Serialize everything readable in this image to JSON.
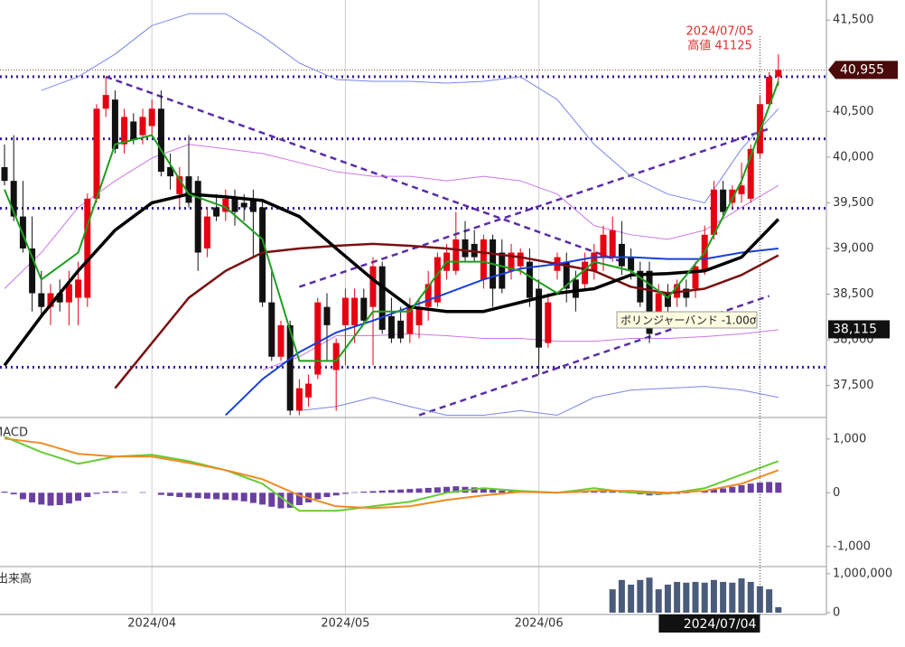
{
  "chart_data": [
    {
      "type": "candlestick",
      "categories": [
        null,
        null,
        null,
        null,
        null,
        null,
        null,
        null,
        null,
        null,
        null,
        null,
        null,
        null,
        null,
        null,
        "2024/04",
        null,
        null,
        null,
        null,
        null,
        null,
        null,
        null,
        null,
        null,
        null,
        null,
        null,
        null,
        null,
        null,
        null,
        null,
        null,
        null,
        "2024/05",
        null,
        null,
        null,
        null,
        null,
        null,
        null,
        null,
        null,
        null,
        null,
        null,
        null,
        null,
        null,
        null,
        null,
        null,
        null,
        null,
        "2024/06",
        null,
        null,
        null,
        null,
        null,
        null,
        null,
        null,
        null,
        null,
        null,
        null,
        null,
        null,
        null,
        null,
        null,
        null,
        null,
        null,
        null,
        null,
        null,
        null,
        null,
        null
      ],
      "ohlc": [
        [
          39890,
          40140,
          39690,
          39740
        ],
        [
          39740,
          40240,
          39300,
          39350
        ],
        [
          39350,
          39740,
          38955,
          39000
        ],
        [
          39000,
          39350,
          38310,
          38510
        ],
        [
          38510,
          38755,
          38260,
          38360
        ],
        [
          38360,
          38610,
          38160,
          38510
        ],
        [
          38510,
          38660,
          38310,
          38410
        ],
        [
          38410,
          38755,
          38160,
          38610
        ],
        [
          38460,
          38855,
          38160,
          38660
        ],
        [
          38460,
          39600,
          38360,
          39545
        ],
        [
          39545,
          40580,
          39500,
          40530
        ],
        [
          40530,
          40880,
          40440,
          40680
        ],
        [
          40630,
          40730,
          40040,
          40090
        ],
        [
          40140,
          40530,
          40040,
          40440
        ],
        [
          40390,
          40480,
          40140,
          40190
        ],
        [
          40240,
          40530,
          40140,
          40440
        ],
        [
          40340,
          40630,
          40240,
          40530
        ],
        [
          40530,
          40730,
          39790,
          39840
        ],
        [
          39890,
          40040,
          39645,
          39790
        ],
        [
          39595,
          39890,
          39450,
          39790
        ],
        [
          39790,
          40240,
          39450,
          39500
        ],
        [
          39740,
          39790,
          38755,
          38955
        ],
        [
          39000,
          39450,
          38905,
          39350
        ],
        [
          39450,
          39595,
          39300,
          39350
        ],
        [
          39400,
          39645,
          39300,
          39545
        ],
        [
          39545,
          39645,
          39250,
          39400
        ],
        [
          39500,
          39595,
          39300,
          39450
        ],
        [
          39545,
          39645,
          38905,
          39400
        ],
        [
          39450,
          39545,
          38360,
          38410
        ],
        [
          38410,
          38755,
          37770,
          37815
        ],
        [
          37815,
          38210,
          37770,
          38160
        ],
        [
          38160,
          38210,
          37175,
          37225
        ],
        [
          37225,
          37570,
          37175,
          37470
        ],
        [
          37370,
          37620,
          37270,
          37520
        ],
        [
          37620,
          38460,
          37570,
          38410
        ],
        [
          38360,
          38510,
          37770,
          38160
        ],
        [
          37670,
          38015,
          37225,
          37965
        ],
        [
          38160,
          38560,
          37720,
          38460
        ],
        [
          38160,
          38560,
          37965,
          38460
        ],
        [
          38460,
          38560,
          38160,
          38210
        ],
        [
          38360,
          38905,
          37720,
          38805
        ],
        [
          38805,
          38855,
          38065,
          38110
        ],
        [
          38260,
          38460,
          37965,
          38015
        ],
        [
          38210,
          38360,
          37965,
          38015
        ],
        [
          38065,
          38460,
          37965,
          38360
        ],
        [
          38160,
          38460,
          38015,
          38360
        ],
        [
          38360,
          38755,
          38210,
          38610
        ],
        [
          38410,
          38955,
          38360,
          38905
        ],
        [
          38755,
          39050,
          38660,
          38955
        ],
        [
          38755,
          39400,
          38710,
          39100
        ],
        [
          39100,
          39300,
          38855,
          38905
        ],
        [
          39050,
          39200,
          38855,
          38905
        ],
        [
          38660,
          39150,
          38560,
          39100
        ],
        [
          39100,
          39150,
          38360,
          38560
        ],
        [
          38955,
          39100,
          38510,
          38560
        ],
        [
          38755,
          39050,
          38660,
          38955
        ],
        [
          38805,
          39000,
          38710,
          38955
        ],
        [
          38855,
          39000,
          38360,
          38460
        ],
        [
          38560,
          38660,
          37620,
          37915
        ],
        [
          37965,
          38510,
          37915,
          38410
        ],
        [
          38755,
          38955,
          38660,
          38905
        ],
        [
          38855,
          38955,
          38410,
          38560
        ],
        [
          38660,
          38755,
          38310,
          38460
        ],
        [
          38610,
          38955,
          38560,
          38855
        ],
        [
          38755,
          39050,
          38660,
          38955
        ],
        [
          38905,
          39250,
          38755,
          39150
        ],
        [
          38905,
          39350,
          38855,
          39200
        ],
        [
          39050,
          39300,
          38710,
          38805
        ],
        [
          38905,
          39000,
          38660,
          38755
        ],
        [
          38755,
          38855,
          38360,
          38410
        ],
        [
          38755,
          38855,
          37965,
          38065
        ],
        [
          38310,
          38610,
          38260,
          38510
        ],
        [
          38510,
          38610,
          38310,
          38360
        ],
        [
          38460,
          38660,
          38360,
          38610
        ],
        [
          38560,
          38660,
          38360,
          38460
        ],
        [
          38560,
          38855,
          38460,
          38805
        ],
        [
          38755,
          39250,
          38710,
          39150
        ],
        [
          39150,
          39740,
          39100,
          39645
        ],
        [
          39645,
          39740,
          39350,
          39400
        ],
        [
          39500,
          39690,
          39450,
          39645
        ],
        [
          39595,
          39940,
          39500,
          39690
        ],
        [
          39545,
          40140,
          39500,
          40090
        ],
        [
          40040,
          40680,
          39990,
          40580
        ],
        [
          40580,
          40930,
          40530,
          40880
        ],
        [
          40880,
          41125,
          40780,
          40955
        ]
      ],
      "up_color": "#e60012",
      "down_color": "#111111",
      "x": [
        0,
        4,
        8,
        12,
        16,
        20,
        24,
        28,
        32,
        36,
        40,
        44,
        48,
        52,
        56,
        60,
        64,
        68,
        72,
        76,
        80,
        84
      ],
      "lines": [
        {
          "color": "#7b86e8",
          "width": 1,
          "values": [
            null,
            40730,
            40880,
            41127,
            41440,
            41570,
            41570,
            41325,
            41030,
            40850,
            40830,
            40830,
            40810,
            40830,
            40880,
            40630,
            40140,
            39790,
            39595,
            39500,
            40090,
            40530
          ]
        },
        {
          "color": "#7b86e8",
          "width": 1,
          "values": [
            null,
            null,
            null,
            null,
            null,
            null,
            null,
            null,
            37225,
            37270,
            37370,
            37270,
            37175,
            37175,
            37225,
            37175,
            37370,
            37450,
            37470,
            37490,
            37450,
            37370
          ]
        },
        {
          "color": "#cc77e6",
          "width": 1,
          "values": [
            38560,
            38955,
            39450,
            39740,
            39990,
            40140,
            40090,
            40040,
            39940,
            39840,
            39790,
            39790,
            39740,
            39790,
            39740,
            39595,
            39250,
            39150,
            39100,
            39200,
            39450,
            39690
          ]
        },
        {
          "color": "#cc77e6",
          "width": 1,
          "values": [
            null,
            null,
            null,
            null,
            null,
            null,
            null,
            37670,
            37815,
            38045,
            38045,
            38065,
            38045,
            38015,
            38015,
            37985,
            37985,
            38015,
            38015,
            38035,
            38065,
            38110
          ]
        },
        {
          "color": "#7a1010",
          "width": 2.5,
          "values": [
            null,
            null,
            null,
            37470,
            37965,
            38460,
            38755,
            38955,
            39000,
            39030,
            39050,
            39030,
            39000,
            38955,
            38905,
            38830,
            38755,
            38580,
            38510,
            38560,
            38710,
            38925
          ]
        },
        {
          "color": "#1a3fd8",
          "width": 2,
          "values": [
            null,
            null,
            null,
            null,
            null,
            null,
            37175,
            37570,
            37865,
            38080,
            38210,
            38360,
            38510,
            38660,
            38780,
            38830,
            38905,
            38905,
            38885,
            38885,
            38955,
            39000
          ]
        },
        {
          "color": "#000000",
          "width": 3.5,
          "values": [
            37720,
            38260,
            38755,
            39200,
            39500,
            39595,
            39565,
            39525,
            39350,
            39000,
            38660,
            38360,
            38310,
            38310,
            38410,
            38510,
            38560,
            38710,
            38725,
            38755,
            38905,
            39320
          ]
        },
        {
          "color": "#1f9e1f",
          "width": 2,
          "values": [
            39645,
            38660,
            38955,
            40140,
            40240,
            39595,
            39450,
            39100,
            37770,
            37770,
            38310,
            38310,
            38855,
            38855,
            38755,
            38510,
            38855,
            38755,
            38460,
            38955,
            39740,
            40830
          ]
        }
      ],
      "hlines": [
        40880,
        40200,
        39440,
        37700
      ],
      "hline_color": "#3a1a9a",
      "trend_lines": [
        {
          "x": [
            11,
            67
          ],
          "values": [
            40880,
            38855
          ]
        },
        {
          "x": [
            32,
            83
          ],
          "values": [
            38580,
            40310
          ]
        },
        {
          "x": [
            45,
            83
          ],
          "values": [
            37175,
            38480
          ]
        }
      ],
      "trend_color": "#5a2ea6",
      "ylim": [
        37150,
        41720
      ],
      "yticks": [
        {
          "value": 41500,
          "label": "41,500"
        },
        {
          "value": 40500,
          "label": "40,500"
        },
        {
          "value": 40000,
          "label": "40,000"
        },
        {
          "value": 39500,
          "label": "39,500"
        },
        {
          "value": 39000,
          "label": "39,000"
        },
        {
          "value": 38500,
          "label": "38,500"
        },
        {
          "value": 38000,
          "label": "38,000"
        },
        {
          "value": 37500,
          "label": "37,500"
        }
      ],
      "last_price": {
        "value": 40955,
        "label": "40,955"
      },
      "cursor_price": {
        "value": 38115,
        "label": "38,115"
      },
      "cursor": {
        "index": 82,
        "label": "2024/07/04"
      },
      "annotation": {
        "date": "2024/07/05",
        "text": "高値 41125",
        "value": 41125
      },
      "tooltip": "ボリンジャーバンド -1.00σ"
    },
    {
      "type": "macd",
      "title": "MACD",
      "x": [
        0,
        4,
        8,
        12,
        16,
        20,
        24,
        28,
        32,
        36,
        40,
        44,
        48,
        52,
        56,
        60,
        64,
        68,
        72,
        76,
        80,
        84
      ],
      "lines": [
        {
          "color": "#66cc33",
          "width": 2,
          "values": [
            1042,
            756,
            538,
            672,
            706,
            588,
            420,
            168,
            -336,
            -336,
            -252,
            -168,
            0,
            84,
            34,
            0,
            84,
            0,
            -17,
            84,
            336,
            588
          ]
        },
        {
          "color": "#f08a24",
          "width": 2,
          "values": [
            1008,
            924,
            723,
            672,
            672,
            555,
            420,
            252,
            -50,
            -252,
            -286,
            -252,
            -134,
            -50,
            17,
            0,
            34,
            34,
            0,
            34,
            168,
            420
          ]
        }
      ],
      "histogram": [
        20,
        -30,
        -120,
        -180,
        -220,
        -240,
        -230,
        -200,
        -150,
        -80,
        -20,
        20,
        30,
        10,
        0,
        10,
        0,
        -40,
        -60,
        -80,
        -90,
        -100,
        -110,
        -120,
        -130,
        -140,
        -160,
        -190,
        -220,
        -260,
        -290,
        -280,
        -230,
        -180,
        -120,
        -80,
        -50,
        -20,
        10,
        20,
        30,
        40,
        50,
        60,
        70,
        80,
        90,
        100,
        110,
        120,
        110,
        100,
        80,
        60,
        40,
        30,
        20,
        10,
        0,
        -10,
        0,
        10,
        20,
        30,
        40,
        50,
        40,
        20,
        0,
        -30,
        -50,
        -40,
        -30,
        -20,
        -10,
        0,
        30,
        60,
        80,
        110,
        140,
        170,
        190,
        200,
        190
      ],
      "histogram_color": "#6b3fa0",
      "ylim": [
        -1340,
        1400
      ],
      "yticks": [
        {
          "value": 1000,
          "label": "1,000"
        },
        0,
        {
          "value": -1000,
          "label": "-1,000"
        }
      ]
    },
    {
      "type": "bar",
      "title": "出来高",
      "values": [
        null,
        null,
        null,
        null,
        null,
        null,
        null,
        null,
        null,
        null,
        null,
        null,
        null,
        null,
        null,
        null,
        null,
        null,
        null,
        null,
        null,
        null,
        null,
        null,
        null,
        null,
        null,
        null,
        null,
        null,
        null,
        null,
        null,
        null,
        null,
        null,
        null,
        null,
        null,
        null,
        null,
        null,
        null,
        null,
        null,
        null,
        null,
        null,
        null,
        null,
        null,
        null,
        null,
        null,
        null,
        null,
        null,
        null,
        null,
        null,
        null,
        null,
        null,
        null,
        null,
        null,
        600000,
        840000,
        720000,
        840000,
        900000,
        600000,
        720000,
        790000,
        770000,
        790000,
        770000,
        840000,
        790000,
        770000,
        880000,
        790000,
        680000,
        600000,
        140000
      ],
      "color": "#4b5b7a",
      "ylim": [
        0,
        1160000
      ],
      "yticks": [
        {
          "value": 1000000,
          "label": "1,000,000"
        },
        0
      ]
    }
  ]
}
